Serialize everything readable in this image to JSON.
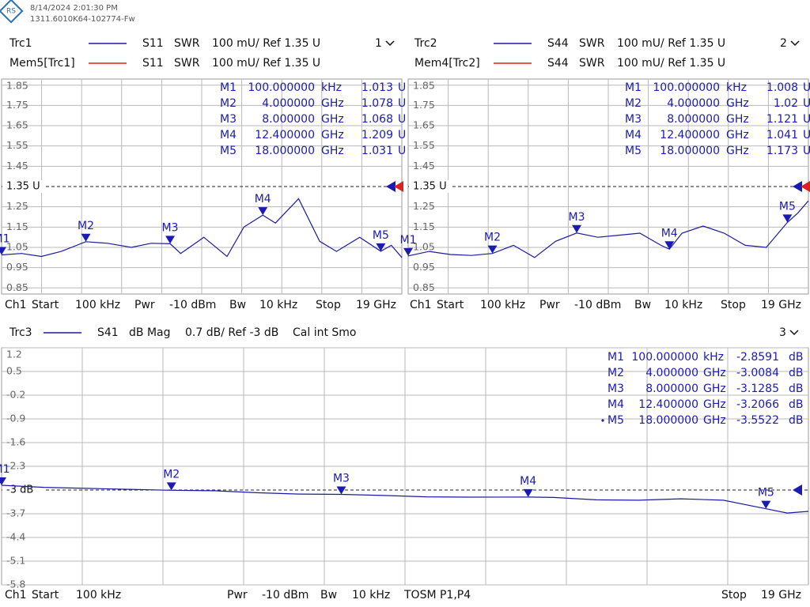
{
  "header": {
    "timestamp": "8/14/2024 2:01:30 PM",
    "firmware": "1311.6010K64-102774-Fw"
  },
  "chart_data": [
    {
      "type": "line",
      "channel": "1",
      "series": [
        {
          "name": "Trc1",
          "parameter": "S11",
          "format": "SWR",
          "scale": "100 mU/ Ref 1.35 U",
          "color": "#1a1aa0",
          "values": [
            1.013,
            1.02,
            1.005,
            1.03,
            1.078,
            1.07,
            1.05,
            1.07,
            1.068,
            1.02,
            1.1,
            1.005,
            1.15,
            1.209,
            1.17,
            1.29,
            1.08,
            1.03,
            1.1,
            1.031,
            1.06,
            1.0
          ]
        },
        {
          "name": "Mem5[Trc1]",
          "parameter": "S11",
          "format": "SWR",
          "scale": "100 mU/ Ref 1.35 U",
          "color": "#e02020"
        }
      ],
      "x": [
        0.0001,
        0.94,
        1.89,
        2.83,
        4.0,
        5.03,
        6.16,
        7.1,
        8.0,
        8.5,
        9.6,
        10.7,
        11.5,
        12.4,
        13.0,
        14.1,
        15.1,
        15.9,
        17.0,
        18.0,
        18.5,
        19
      ],
      "xlim": [
        0.0001,
        19
      ],
      "ylim": [
        0.82,
        1.88
      ],
      "yticks": [
        0.85,
        0.95,
        1.05,
        1.15,
        1.25,
        {
          "value": 1.35,
          "label": "1.35 U"
        },
        1.45,
        1.55,
        1.65,
        1.75,
        1.85
      ],
      "markers": [
        {
          "name": "M1",
          "stimulus": "100.000000",
          "stimulus_unit": "kHz",
          "value": 1.013,
          "value_unit": "U"
        },
        {
          "name": "M2",
          "stimulus": "4.000000",
          "stimulus_unit": "GHz",
          "value": 1.078,
          "value_unit": "U"
        },
        {
          "name": "M3",
          "stimulus": "8.000000",
          "stimulus_unit": "GHz",
          "value": 1.068,
          "value_unit": "U"
        },
        {
          "name": "M4",
          "stimulus": "12.400000",
          "stimulus_unit": "GHz",
          "value": 1.209,
          "value_unit": "U"
        },
        {
          "name": "M5",
          "stimulus": "18.000000",
          "stimulus_unit": "GHz",
          "value": 1.031,
          "value_unit": "U"
        }
      ],
      "footer": [
        "Ch1",
        "Start",
        "100 kHz",
        "Pwr",
        "-10 dBm",
        "Bw",
        "10 kHz",
        "Stop",
        "19 GHz"
      ]
    },
    {
      "type": "line",
      "channel": "2",
      "series": [
        {
          "name": "Trc2",
          "parameter": "S44",
          "format": "SWR",
          "scale": "100 mU/ Ref 1.35 U",
          "color": "#1a1aa0",
          "values": [
            1.008,
            1.03,
            1.015,
            1.01,
            1.02,
            1.06,
            1.0,
            1.08,
            1.121,
            1.1,
            1.11,
            1.12,
            1.06,
            1.041,
            1.12,
            1.155,
            1.12,
            1.06,
            1.05,
            1.173,
            1.22,
            1.28
          ]
        },
        {
          "name": "Mem4[Trc2]",
          "parameter": "S44",
          "format": "SWR",
          "scale": "100 mU/ Ref 1.35 U",
          "color": "#e02020"
        }
      ],
      "x": [
        0.0001,
        1,
        2,
        3,
        4,
        5,
        6,
        7,
        8,
        9,
        10,
        11,
        12,
        12.4,
        13,
        14,
        15,
        16,
        17,
        18,
        18.5,
        19
      ],
      "xlim": [
        0.0001,
        19
      ],
      "ylim": [
        0.82,
        1.88
      ],
      "yticks": [
        0.85,
        0.95,
        1.05,
        1.15,
        1.25,
        {
          "value": 1.35,
          "label": "1.35 U"
        },
        1.45,
        1.55,
        1.65,
        1.75,
        1.85
      ],
      "markers": [
        {
          "name": "M1",
          "stimulus": "100.000000",
          "stimulus_unit": "kHz",
          "value": 1.008,
          "value_unit": "U"
        },
        {
          "name": "M2",
          "stimulus": "4.000000",
          "stimulus_unit": "GHz",
          "value": 1.02,
          "value_unit": "U"
        },
        {
          "name": "M3",
          "stimulus": "8.000000",
          "stimulus_unit": "GHz",
          "value": 1.121,
          "value_unit": "U"
        },
        {
          "name": "M4",
          "stimulus": "12.400000",
          "stimulus_unit": "GHz",
          "value": 1.041,
          "value_unit": "U"
        },
        {
          "name": "M5",
          "stimulus": "18.000000",
          "stimulus_unit": "GHz",
          "value": 1.173,
          "value_unit": "U"
        }
      ],
      "footer": [
        "Ch1",
        "Start",
        "100 kHz",
        "Pwr",
        "-10 dBm",
        "Bw",
        "10 kHz",
        "Stop",
        "19 GHz"
      ]
    },
    {
      "type": "line",
      "channel": "3",
      "series": [
        {
          "name": "Trc3",
          "parameter": "S41",
          "format": "dB Mag",
          "scale": "0.7 dB/ Ref -3 dB",
          "status": "Cal int Smo",
          "color": "#1a1aa0",
          "values": [
            -2.86,
            -2.92,
            -2.95,
            -2.98,
            -3.008,
            -3.02,
            -3.08,
            -3.12,
            -3.128,
            -3.16,
            -3.2,
            -3.21,
            -3.207,
            -3.22,
            -3.29,
            -3.3,
            -3.26,
            -3.3,
            -3.552,
            -3.68,
            -3.63
          ]
        }
      ],
      "x": [
        0.0001,
        1,
        2,
        3,
        4,
        5,
        6,
        7,
        8,
        9,
        10,
        11,
        12.4,
        13,
        14,
        15,
        16,
        17,
        18,
        18.5,
        19
      ],
      "xlim": [
        0.0001,
        19
      ],
      "ylim": [
        -5.8,
        1.2
      ],
      "yticks": [
        1.2,
        0.5,
        -0.2,
        -0.9,
        -1.6,
        -2.3,
        {
          "value": -3,
          "label": "-3 dB"
        },
        -3.7,
        -4.4,
        -5.1,
        -5.8
      ],
      "markers": [
        {
          "name": "M1",
          "stimulus": "100.000000",
          "stimulus_unit": "kHz",
          "value": -2.8591,
          "value_unit": "dB"
        },
        {
          "name": "M2",
          "stimulus": "4.000000",
          "stimulus_unit": "GHz",
          "value": -3.0084,
          "value_unit": "dB"
        },
        {
          "name": "M3",
          "stimulus": "8.000000",
          "stimulus_unit": "GHz",
          "value": -3.1285,
          "value_unit": "dB"
        },
        {
          "name": "M4",
          "stimulus": "12.400000",
          "stimulus_unit": "GHz",
          "value": -3.2066,
          "value_unit": "dB"
        },
        {
          "name": "M5",
          "stimulus": "18.000000",
          "stimulus_unit": "GHz",
          "value": -3.5522,
          "value_unit": "dB"
        }
      ],
      "footer": [
        "Ch1",
        "Start",
        "100 kHz",
        "Pwr",
        "-10 dBm",
        "Bw",
        "10 kHz",
        "TOSM P1,P4",
        "Stop",
        "19 GHz"
      ]
    }
  ]
}
